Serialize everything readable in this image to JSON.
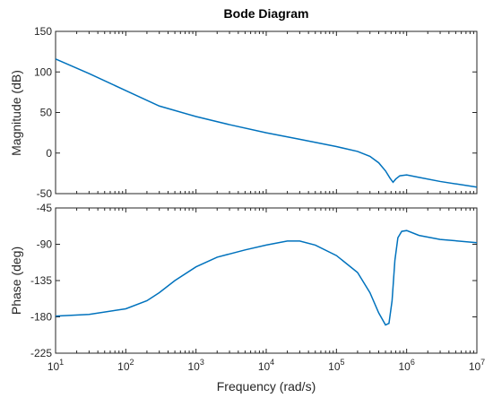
{
  "chart_data": {
    "type": "line",
    "title": "Bode Diagram",
    "xlabel": "Frequency  (rad/s)",
    "xscale": "log",
    "xlim": [
      10,
      10000000
    ],
    "xtick_values": [
      10,
      100,
      1000,
      10000,
      100000,
      1000000,
      10000000
    ],
    "xtick_labels": [
      {
        "base": "10",
        "exp": "1"
      },
      {
        "base": "10",
        "exp": "2"
      },
      {
        "base": "10",
        "exp": "3"
      },
      {
        "base": "10",
        "exp": "4"
      },
      {
        "base": "10",
        "exp": "5"
      },
      {
        "base": "10",
        "exp": "6"
      },
      {
        "base": "10",
        "exp": "7"
      }
    ],
    "line_color": "#0072BD",
    "grid": false,
    "panels": [
      {
        "id": "magnitude",
        "ylabel": "Magnitude (dB)",
        "ylim": [
          -50,
          150
        ],
        "yticks": [
          -50,
          0,
          50,
          100,
          150
        ],
        "ytick_labels": [
          "-50",
          "0",
          "50",
          "100",
          "150"
        ],
        "x": [
          10,
          30,
          100,
          300,
          1000,
          3000,
          10000,
          30000,
          100000,
          200000,
          300000,
          400000,
          500000,
          580000,
          640000,
          700000,
          800000,
          1000000,
          1500000,
          3000000,
          10000000
        ],
        "y": [
          116,
          98,
          77,
          58,
          45,
          35,
          25,
          17,
          8,
          2,
          -4,
          -12,
          -22,
          -31,
          -36,
          -32,
          -28,
          -27,
          -30,
          -35,
          -42
        ]
      },
      {
        "id": "phase",
        "ylabel": "Phase (deg)",
        "ylim": [
          -225,
          -45
        ],
        "yticks": [
          -225,
          -180,
          -135,
          -90,
          -45
        ],
        "ytick_labels": [
          "-225",
          "-180",
          "-135",
          "-90",
          "-45"
        ],
        "x": [
          10,
          30,
          100,
          200,
          300,
          500,
          1000,
          2000,
          5000,
          10000,
          20000,
          30000,
          50000,
          100000,
          200000,
          300000,
          400000,
          500000,
          560000,
          620000,
          680000,
          750000,
          850000,
          1000000,
          1500000,
          3000000,
          10000000
        ],
        "y": [
          -179,
          -177,
          -170,
          -160,
          -150,
          -135,
          -118,
          -106,
          -97,
          -91,
          -86,
          -86,
          -91,
          -104,
          -125,
          -150,
          -175,
          -190,
          -188,
          -160,
          -110,
          -82,
          -74,
          -73,
          -79,
          -84,
          -88
        ]
      }
    ]
  }
}
